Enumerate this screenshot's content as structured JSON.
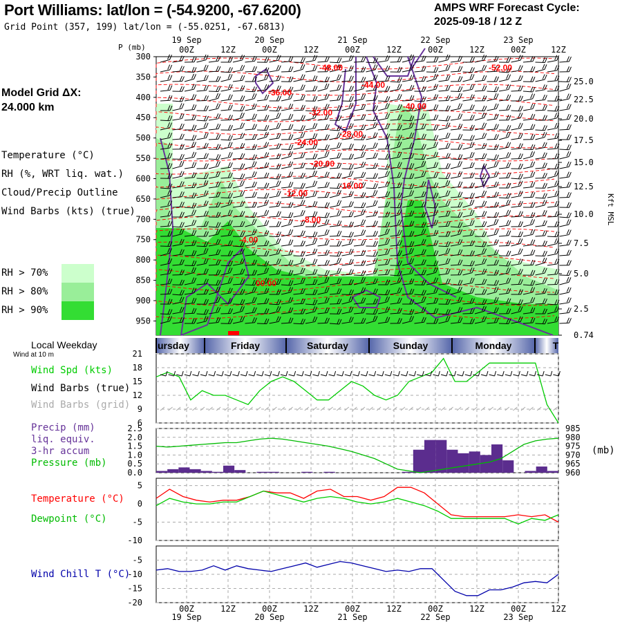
{
  "header": {
    "title": "Port Williams:  lat/lon = (-54.9200, -67.6200)",
    "grid_point": "Grid Point (357, 199) lat/lon = (-55.0251, -67.6813)",
    "cycle_line1": "AMPS WRF Forecast Cycle:",
    "cycle_line2": "2025-09-18 / 12  Z"
  },
  "left_panel": {
    "model_grid": "Model Grid ΔX:",
    "model_grid_km": " 24.000 km",
    "temperature": "Temperature (°C)",
    "rh": "RH (%, WRT liq. wat.)",
    "cloud": "Cloud/Precip Outline",
    "wind_barbs": "Wind Barbs (kts) (true)",
    "rh70": "RH > 70%",
    "rh80": "RH > 80%",
    "rh90": "RH > 90%",
    "local_weekday": "Local Weekday",
    "wind_10m": "Wind at 10 m",
    "wind_spd": "Wind Spd (kts)",
    "wind_barbs_true": "Wind Barbs (true)",
    "wind_barbs_grid": "Wind Barbs (grid)",
    "precip_1": "Precip (mm)",
    "precip_2": "liq. equiv.",
    "precip_3": "3-hr accum",
    "pressure": "Pressure (mb)",
    "temp2": "Temperature (°C)",
    "dewpoint": "Dewpoint (°C)",
    "wind_chill": "Wind Chill T (°C)",
    "mb_unit": "(mb)",
    "p_label": "P (mb)",
    "kft": "Kft MSL"
  },
  "colors": {
    "temp": "#ff0000",
    "rh70": "#ccffcc",
    "rh80": "#99ee99",
    "rh90": "#33dd33",
    "cloud": "#663399",
    "dew": "#00cc00",
    "chill": "#0000aa",
    "precip": "#5b2d8e",
    "pressure": "#00bb00",
    "wind": "#00cc00",
    "grey_barb": "#aaaaaa",
    "day_band": "#5566aa"
  },
  "chart_data": {
    "type": "line",
    "time_axis": {
      "hour_ticks": [
        "00Z",
        "12Z",
        "00Z",
        "12Z",
        "00Z",
        "12Z",
        "00Z",
        "12Z",
        "00Z",
        "12Z"
      ],
      "date_labels": [
        "19 Sep",
        "20 Sep",
        "21 Sep",
        "22 Sep",
        "23 Sep"
      ],
      "weekdays": [
        "ursday",
        "Friday",
        "Saturday",
        "Sunday",
        "Monday",
        "T"
      ]
    },
    "cross_section": {
      "pressure_levels": [
        300,
        350,
        400,
        450,
        500,
        550,
        600,
        650,
        700,
        750,
        800,
        850,
        900,
        950
      ],
      "height_kft": [
        "25.0",
        "22.5",
        "20.0",
        "17.5",
        "15.0",
        "12.5",
        "10.0",
        "7.5",
        "5.0",
        "2.5",
        "0.74"
      ],
      "temp_contours": [
        "-48.00",
        "-52.00",
        "-44.00",
        "-36.00",
        "-40.00",
        "-32.00",
        "-28.00",
        "-24.00",
        "-20.00",
        "-16.00",
        "-12.00",
        "-8.00",
        "-4.00",
        "00.00"
      ]
    },
    "wind_panel": {
      "yticks": [
        "21",
        "18",
        "15",
        "12",
        "9",
        "6"
      ],
      "ylim": [
        6,
        21
      ],
      "wind_speed": [
        16,
        17,
        16,
        11,
        13,
        12,
        12,
        11,
        10,
        13,
        15,
        16,
        15,
        13,
        11,
        11,
        13,
        15,
        14,
        12,
        11,
        12,
        15,
        16,
        17,
        20,
        15,
        15,
        17,
        19,
        19,
        19,
        19,
        19,
        10,
        6
      ]
    },
    "precip_panel": {
      "yticks_left": [
        "2.5",
        "2.0",
        "1.5",
        "1.0",
        "0.5",
        "0.0"
      ],
      "yticks_right": [
        "985",
        "980",
        "975",
        "970",
        "965",
        "960"
      ],
      "precip_ylim": [
        0,
        2.5
      ],
      "pressure_ylim": [
        960,
        985
      ],
      "precip": [
        0.1,
        0.2,
        0.3,
        0.2,
        0.1,
        0.05,
        0.4,
        0.15,
        0.0,
        0.05,
        0.05,
        0.0,
        0.0,
        0.05,
        0.0,
        0.05,
        0.0,
        0.0,
        0.0,
        0.0,
        0.0,
        0.0,
        0.05,
        1.3,
        1.85,
        1.85,
        1.3,
        1.1,
        1.2,
        1.0,
        1.6,
        0.7,
        0.0,
        0.1,
        0.35,
        0.1
      ],
      "pressure": [
        975,
        974.5,
        975,
        975.5,
        976,
        976.5,
        977,
        977,
        978,
        979,
        979.5,
        979,
        978,
        977,
        976,
        975,
        973.5,
        972,
        970,
        968,
        965,
        962,
        961,
        960,
        961,
        962,
        963,
        964,
        965,
        966,
        968,
        972,
        976,
        978,
        979,
        979.5
      ]
    },
    "temp_panel": {
      "yticks": [
        "5",
        "0",
        "-5",
        "-10"
      ],
      "ylim": [
        -10,
        7
      ],
      "temperature": [
        1.5,
        4,
        2,
        1,
        0.5,
        1,
        1,
        2,
        3.5,
        3,
        3,
        1.5,
        3.5,
        4,
        2,
        2,
        1,
        2,
        4.5,
        4.5,
        3,
        0,
        -3,
        -3.5,
        -3.5,
        -3.5,
        -3.5,
        -3,
        -3.5,
        -3,
        -5
      ],
      "dewpoint": [
        -0.5,
        1.5,
        0.5,
        0,
        0,
        0.5,
        0.5,
        2,
        3.5,
        2.5,
        1.5,
        0.5,
        1.5,
        2,
        1.5,
        0.5,
        0,
        0.5,
        1.5,
        0.5,
        -0.5,
        -2,
        -4,
        -4,
        -4,
        -4,
        -4,
        -5.5,
        -4,
        -4.5,
        -3
      ]
    },
    "chill_panel": {
      "yticks": [
        "-5",
        "-10",
        "-15",
        "-20"
      ],
      "ylim": [
        -20,
        0
      ],
      "wind_chill": [
        -8.5,
        -8,
        -9,
        -9,
        -8.5,
        -7,
        -8.5,
        -7,
        -8,
        -8.5,
        -9,
        -8,
        -7,
        -6,
        -7.5,
        -6.5,
        -5.5,
        -6,
        -7,
        -8,
        -9,
        -8.5,
        -9,
        -8,
        -8,
        -12,
        -16,
        -17.5,
        -17.5,
        -15.5,
        -15.5,
        -14.5,
        -13,
        -12.5,
        -13,
        -10
      ]
    }
  }
}
